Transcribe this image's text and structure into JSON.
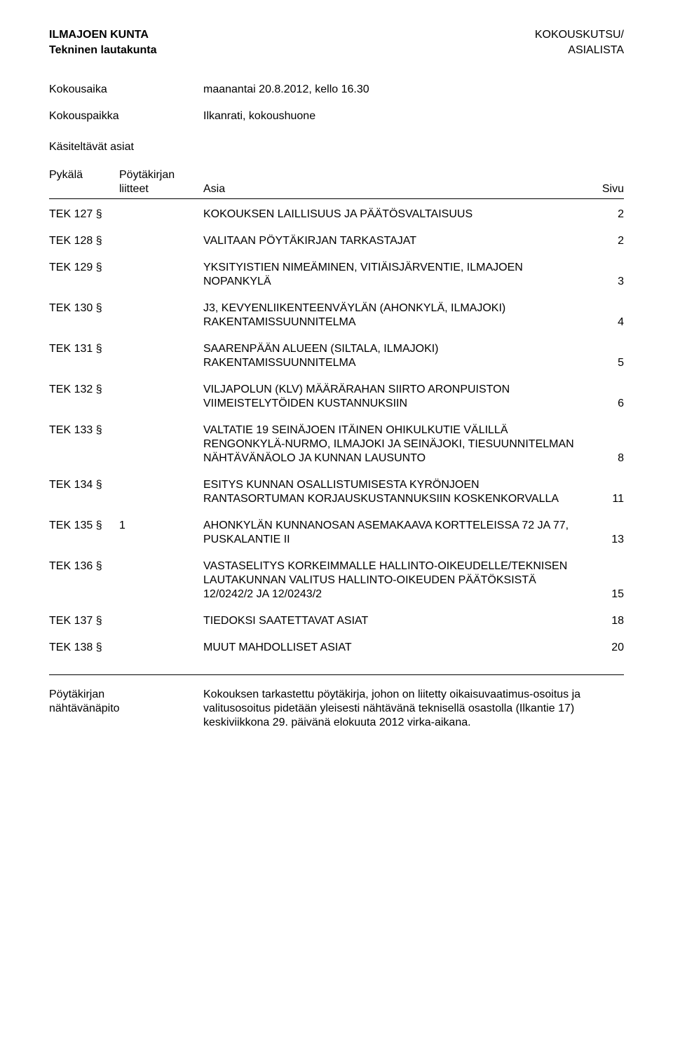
{
  "header": {
    "org": "ILMAJOEN KUNTA",
    "right1": "KOKOUSKUTSU/",
    "sub": "Tekninen lautakunta",
    "right2": "ASIALISTA"
  },
  "meeting": {
    "time_label": "Kokousaika",
    "time_value": "maanantai 20.8.2012, kello 16.30",
    "place_label": "Kokouspaikka",
    "place_value": "Ilkanrati, kokoushuone",
    "items_label": "Käsiteltävät asiat"
  },
  "cols": {
    "pykala": "Pykälä",
    "liite1": "Pöytäkirjan",
    "liite2": "liitteet",
    "asia": "Asia",
    "sivu": "Sivu"
  },
  "agenda": [
    {
      "id": "TEK 127 §",
      "att": "",
      "title": "KOKOUKSEN LAILLISUUS JA PÄÄTÖSVALTAISUUS",
      "page": "2"
    },
    {
      "id": "TEK 128 §",
      "att": "",
      "title": "VALITAAN PÖYTÄKIRJAN TARKASTAJAT",
      "page": "2"
    },
    {
      "id": "TEK 129 §",
      "att": "",
      "title": "YKSITYISTIEN NIMEÄMINEN, VITIÄISJÄRVENTIE, ILMAJOEN NOPANKYLÄ",
      "page": "3"
    },
    {
      "id": "TEK 130 §",
      "att": "",
      "title": "J3, KEVYENLIIKENTEENVÄYLÄN (AHONKYLÄ, ILMAJOKI) RAKENTAMISSUUNNITELMA",
      "page": "4"
    },
    {
      "id": "TEK 131 §",
      "att": "",
      "title": "SAARENPÄÄN  ALUEEN (SILTALA, ILMAJOKI) RAKENTAMISSUUNNITELMA",
      "page": "5"
    },
    {
      "id": "TEK 132 §",
      "att": "",
      "title": "VILJAPOLUN (KLV) MÄÄRÄRAHAN SIIRTO ARONPUISTON VIIMEISTELYTÖIDEN KUSTANNUKSIIN",
      "page": "6"
    },
    {
      "id": "TEK 133 §",
      "att": "",
      "title": "VALTATIE 19 SEINÄJOEN ITÄINEN OHIKULKUTIE VÄLILLÄ RENGONKYLÄ-NURMO, ILMAJOKI JA SEINÄJOKI, TIESUUNNITELMAN NÄHTÄVÄNÄOLO JA KUNNAN LAUSUNTO",
      "page": "8"
    },
    {
      "id": "TEK 134 §",
      "att": "",
      "title": "ESITYS KUNNAN OSALLISTUMISESTA KYRÖNJOEN RANTASORTUMAN KORJAUSKUSTANNUKSIIN KOSKENKORVALLA",
      "page": "11"
    },
    {
      "id": "TEK 135 §",
      "att": "1",
      "title": "AHONKYLÄN KUNNANOSAN ASEMAKAAVA KORTTELEISSA 72 JA 77, PUSKALANTIE II",
      "page": "13"
    },
    {
      "id": "TEK 136 §",
      "att": "",
      "title": "VASTASELITYS KORKEIMMALLE HALLINTO-OIKEUDELLE/TEKNISEN LAUTAKUNNAN VALITUS HALLINTO-OIKEUDEN PÄÄTÖKSISTÄ 12/0242/2 JA 12/0243/2",
      "page": "15"
    },
    {
      "id": "TEK 137 §",
      "att": "",
      "title": "TIEDOKSI SAATETTAVAT ASIAT",
      "page": "18"
    },
    {
      "id": "TEK 138 §",
      "att": "",
      "title": "MUUT MAHDOLLISET ASIAT",
      "page": "20"
    }
  ],
  "footer": {
    "label1": "Pöytäkirjan",
    "label2": "nähtävänäpito",
    "text": "Kokouksen tarkastettu pöytäkirja, johon on liitetty oikaisuvaatimus-osoitus ja valitusosoitus pidetään yleisesti nähtävänä teknisellä osastolla (Ilkantie 17) keskiviikkona 29. päivänä elokuuta 2012 virka-aikana."
  }
}
